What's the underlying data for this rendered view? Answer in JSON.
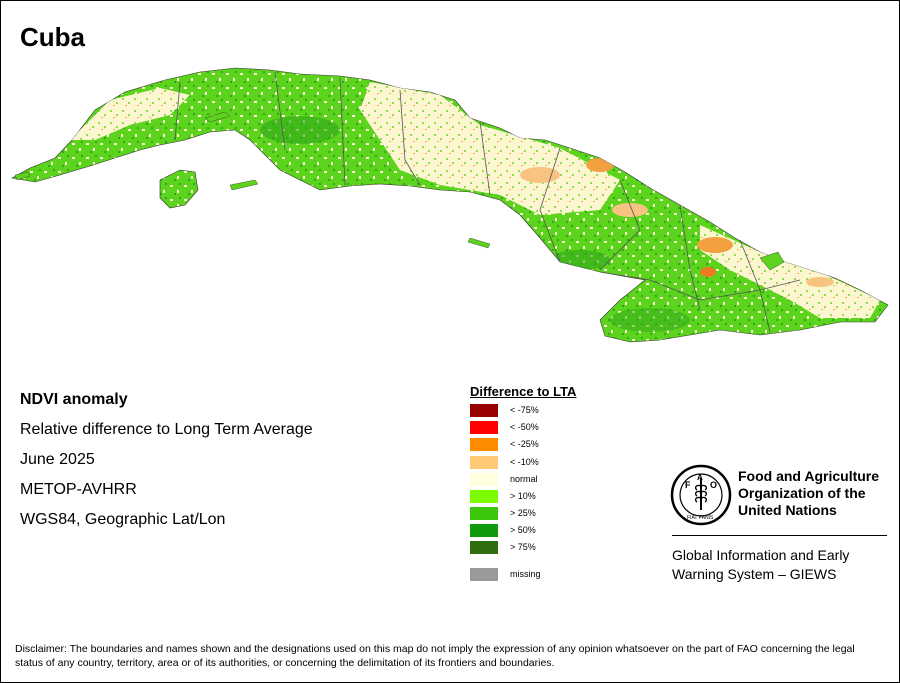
{
  "title": "Cuba",
  "info": {
    "line1": "NDVI anomaly",
    "line2": "Relative difference to Long Term Average",
    "line3": "June 2025",
    "line4": "METOP-AVHRR",
    "line5": "WGS84, Geographic Lat/Lon"
  },
  "legend": {
    "title": "Difference to LTA",
    "items": [
      {
        "label": "< -75%",
        "color": "#990000"
      },
      {
        "label": "< -50%",
        "color": "#ff0000"
      },
      {
        "label": "< -25%",
        "color": "#ff8c00"
      },
      {
        "label": "< -10%",
        "color": "#ffc875"
      },
      {
        "label": "normal",
        "color": "#ffffe0"
      },
      {
        "label": "> 10%",
        "color": "#7cfc00"
      },
      {
        "label": "> 25%",
        "color": "#3cc80a"
      },
      {
        "label": "> 50%",
        "color": "#109a10"
      },
      {
        "label": "> 75%",
        "color": "#2e6e0e"
      },
      {
        "label": "missing",
        "color": "#999999"
      }
    ]
  },
  "logo": {
    "emblem_text": "FIAT PANIS",
    "emblem_letters": "FAO",
    "org_line1": "Food and Agriculture",
    "org_line2": "Organization of the",
    "org_line3": "United Nations",
    "giews_line1": "Global Information and Early",
    "giews_line2": "Warning System – GIEWS"
  },
  "colors": {
    "land_normal": "#fbf6cf",
    "land_green": "#5cd31c",
    "land_dark_green": "#2fa81a",
    "dry_orange": "#f2b35c",
    "boundary": "#555555"
  },
  "disclaimer": "Disclaimer: The boundaries and names shown and the designations used on this map do not imply the expression of any opinion whatsoever on the part of FAO concerning the legal status of any country, territory, area or of its authorities, or concerning the delimitation of its frontiers and boundaries."
}
